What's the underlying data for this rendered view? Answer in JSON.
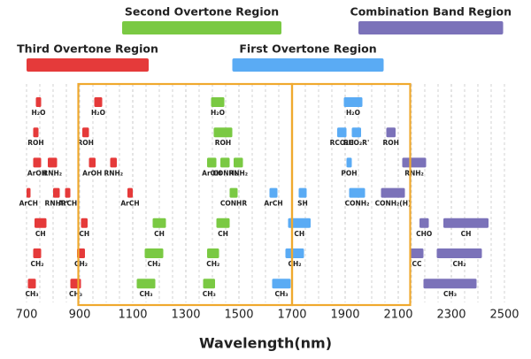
{
  "chart_data": {
    "type": "range",
    "xlabel": "Wavelength(nm)",
    "xlim": [
      700,
      2500
    ],
    "xticks": [
      700,
      900,
      1100,
      1300,
      1500,
      1700,
      1900,
      2100,
      2300,
      2500
    ],
    "xgrid": [
      750,
      800,
      850,
      900,
      950,
      1000,
      1050,
      1100,
      1150,
      1200,
      1250,
      1300,
      1350,
      1400,
      1450,
      1500,
      1550,
      1600,
      1650,
      1700,
      1750,
      1800,
      1850,
      1900,
      1950,
      2000,
      2050,
      2100,
      2150,
      2200,
      2250,
      2300,
      2350,
      2400,
      2450
    ],
    "highlight_color": "#f0a92e",
    "highlights": [
      {
        "start": 895,
        "end": 1700
      },
      {
        "start": 1700,
        "end": 2145
      }
    ],
    "regions": [
      {
        "name": "Second Overtone Region",
        "color": "#7ac943",
        "start": 1060,
        "end": 1660
      },
      {
        "name": "Combination Band Region",
        "color": "#7b72b9",
        "start": 1950,
        "end": 2495
      },
      {
        "name": "Third Overtone Region",
        "color": "#e53a3a",
        "start": 700,
        "end": 1160
      },
      {
        "name": "First Overtone Region",
        "color": "#5aabf4",
        "start": 1475,
        "end": 2045
      }
    ],
    "rows": [
      [
        {
          "label": "H₂O",
          "color": "#e53a3a",
          "start": 735,
          "end": 755
        },
        {
          "label": "H₂O",
          "color": "#e53a3a",
          "start": 955,
          "end": 985
        },
        {
          "label": "H₂O",
          "color": "#7ac943",
          "start": 1395,
          "end": 1445
        },
        {
          "label": "H₂O",
          "color": "#5aabf4",
          "start": 1895,
          "end": 1965
        }
      ],
      [
        {
          "label": "ROH",
          "color": "#e53a3a",
          "start": 725,
          "end": 745
        },
        {
          "label": "ROH",
          "color": "#e53a3a",
          "start": 910,
          "end": 935
        },
        {
          "label": "ROH",
          "color": "#7ac943",
          "start": 1405,
          "end": 1475
        },
        {
          "label": "RCO₂H",
          "color": "#5aabf4",
          "start": 1870,
          "end": 1905
        },
        {
          "label": "RCO₂R'",
          "color": "#5aabf4",
          "start": 1925,
          "end": 1960
        },
        {
          "label": "ROH",
          "color": "#7b72b9",
          "start": 2055,
          "end": 2090
        }
      ],
      [
        {
          "label": "ArOH",
          "color": "#e53a3a",
          "start": 725,
          "end": 755
        },
        {
          "label": "RNH₂",
          "color": "#e53a3a",
          "start": 780,
          "end": 815
        },
        {
          "label": "ArOH",
          "color": "#e53a3a",
          "start": 935,
          "end": 960
        },
        {
          "label": "RNH₂",
          "color": "#e53a3a",
          "start": 1015,
          "end": 1040
        },
        {
          "label": "ArOH",
          "color": "#7ac943",
          "start": 1380,
          "end": 1415
        },
        {
          "label": "CONH₂",
          "color": "#7ac943",
          "start": 1430,
          "end": 1465
        },
        {
          "label": "RNH₂",
          "color": "#7ac943",
          "start": 1480,
          "end": 1515
        },
        {
          "label": "POH",
          "color": "#5aabf4",
          "start": 1905,
          "end": 1925
        },
        {
          "label": "RNH₂",
          "color": "#7b72b9",
          "start": 2115,
          "end": 2205
        }
      ],
      [
        {
          "label": "ArCH",
          "color": "#e53a3a",
          "start": 700,
          "end": 715
        },
        {
          "label": "RNHR'",
          "color": "#e53a3a",
          "start": 800,
          "end": 825
        },
        {
          "label": "ArCH",
          "color": "#e53a3a",
          "start": 845,
          "end": 865
        },
        {
          "label": "ArCH",
          "color": "#e53a3a",
          "start": 1080,
          "end": 1100
        },
        {
          "label": "CONHR",
          "color": "#7ac943",
          "start": 1465,
          "end": 1495
        },
        {
          "label": "ArCH",
          "color": "#5aabf4",
          "start": 1615,
          "end": 1645
        },
        {
          "label": "SH",
          "color": "#5aabf4",
          "start": 1725,
          "end": 1755
        },
        {
          "label": "CONH₂",
          "color": "#5aabf4",
          "start": 1915,
          "end": 1975
        },
        {
          "label": "CONH₂(H)",
          "color": "#7b72b9",
          "start": 2035,
          "end": 2125
        }
      ],
      [
        {
          "label": "CH",
          "color": "#e53a3a",
          "start": 730,
          "end": 775
        },
        {
          "label": "CH",
          "color": "#e53a3a",
          "start": 905,
          "end": 930
        },
        {
          "label": "CH",
          "color": "#7ac943",
          "start": 1175,
          "end": 1225
        },
        {
          "label": "CH",
          "color": "#7ac943",
          "start": 1415,
          "end": 1465
        },
        {
          "label": "CH",
          "color": "#5aabf4",
          "start": 1685,
          "end": 1770
        },
        {
          "label": "CHO",
          "color": "#7b72b9",
          "start": 2180,
          "end": 2215
        },
        {
          "label": "CH",
          "color": "#7b72b9",
          "start": 2270,
          "end": 2440
        }
      ],
      [
        {
          "label": "CH₂",
          "color": "#e53a3a",
          "start": 725,
          "end": 755
        },
        {
          "label": "CH₂",
          "color": "#e53a3a",
          "start": 890,
          "end": 920
        },
        {
          "label": "CH₂",
          "color": "#7ac943",
          "start": 1145,
          "end": 1215
        },
        {
          "label": "CH₂",
          "color": "#7ac943",
          "start": 1380,
          "end": 1425
        },
        {
          "label": "CH₂",
          "color": "#5aabf4",
          "start": 1675,
          "end": 1745
        },
        {
          "label": "CC",
          "color": "#7b72b9",
          "start": 2145,
          "end": 2195
        },
        {
          "label": "CH₂",
          "color": "#7b72b9",
          "start": 2245,
          "end": 2415
        }
      ],
      [
        {
          "label": "CH₃",
          "color": "#e53a3a",
          "start": 705,
          "end": 735
        },
        {
          "label": "CH₃",
          "color": "#e53a3a",
          "start": 865,
          "end": 905
        },
        {
          "label": "CH₃",
          "color": "#7ac943",
          "start": 1115,
          "end": 1185
        },
        {
          "label": "CH₃",
          "color": "#7ac943",
          "start": 1365,
          "end": 1410
        },
        {
          "label": "CH₃",
          "color": "#5aabf4",
          "start": 1625,
          "end": 1695
        },
        {
          "label": "CH₃",
          "color": "#7b72b9",
          "start": 2195,
          "end": 2395
        }
      ]
    ]
  }
}
